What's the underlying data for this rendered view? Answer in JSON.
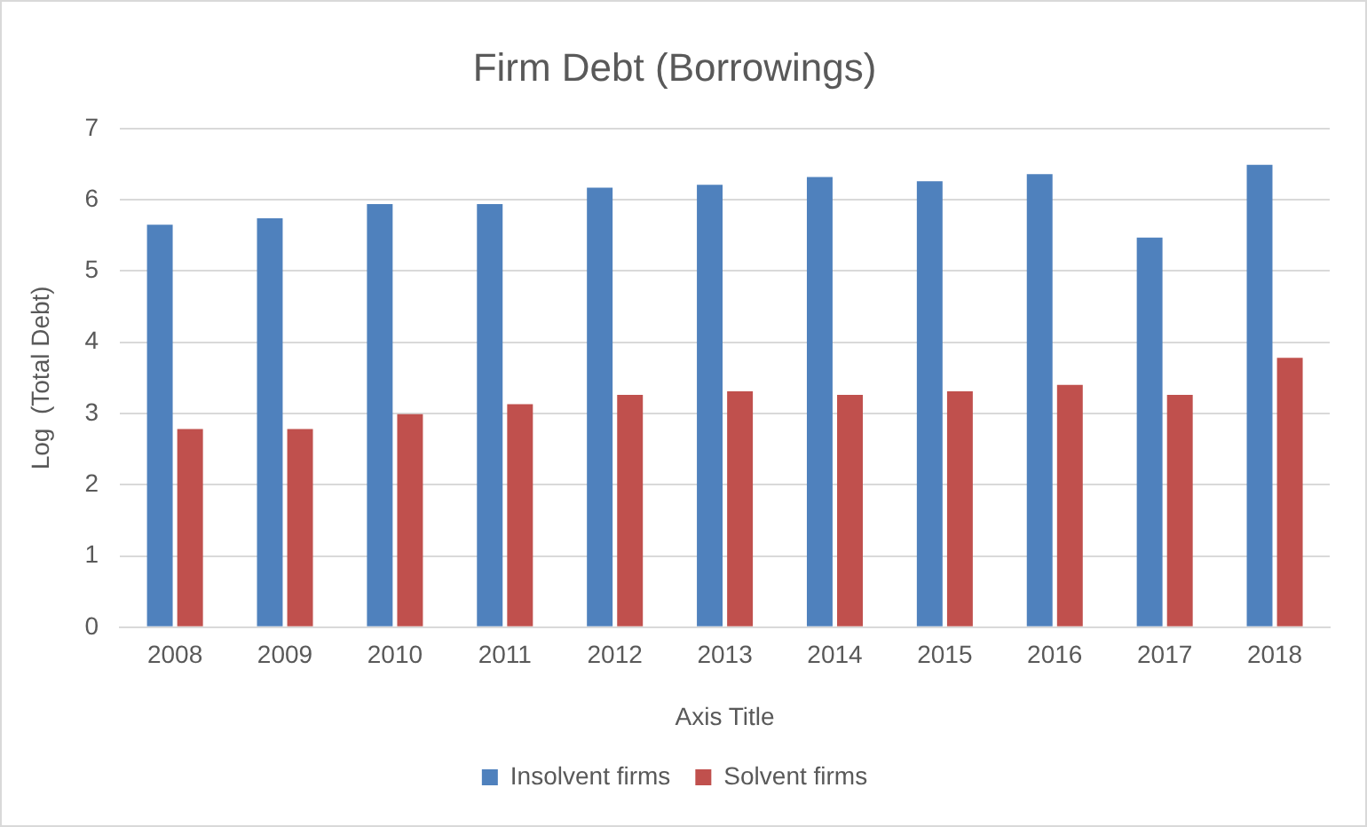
{
  "chart_data": {
    "type": "bar",
    "title": "Firm Debt (Borrowings)",
    "xlabel": "Axis Title",
    "ylabel": "Log  (Total Debt)",
    "categories": [
      "2008",
      "2009",
      "2010",
      "2011",
      "2012",
      "2013",
      "2014",
      "2015",
      "2016",
      "2017",
      "2018"
    ],
    "series": [
      {
        "name": "Insolvent firms",
        "color": "#4f81bd",
        "values": [
          5.65,
          5.74,
          5.94,
          5.94,
          6.17,
          6.21,
          6.32,
          6.26,
          6.36,
          5.47,
          6.49
        ]
      },
      {
        "name": "Solvent firms",
        "color": "#c0504d",
        "values": [
          2.78,
          2.78,
          2.99,
          3.13,
          3.26,
          3.31,
          3.26,
          3.31,
          3.4,
          3.26,
          3.78
        ]
      }
    ],
    "ylim": [
      0,
      7
    ],
    "yticks": [
      0,
      1,
      2,
      3,
      4,
      5,
      6,
      7
    ],
    "grid": "y",
    "legend": "bottom"
  }
}
